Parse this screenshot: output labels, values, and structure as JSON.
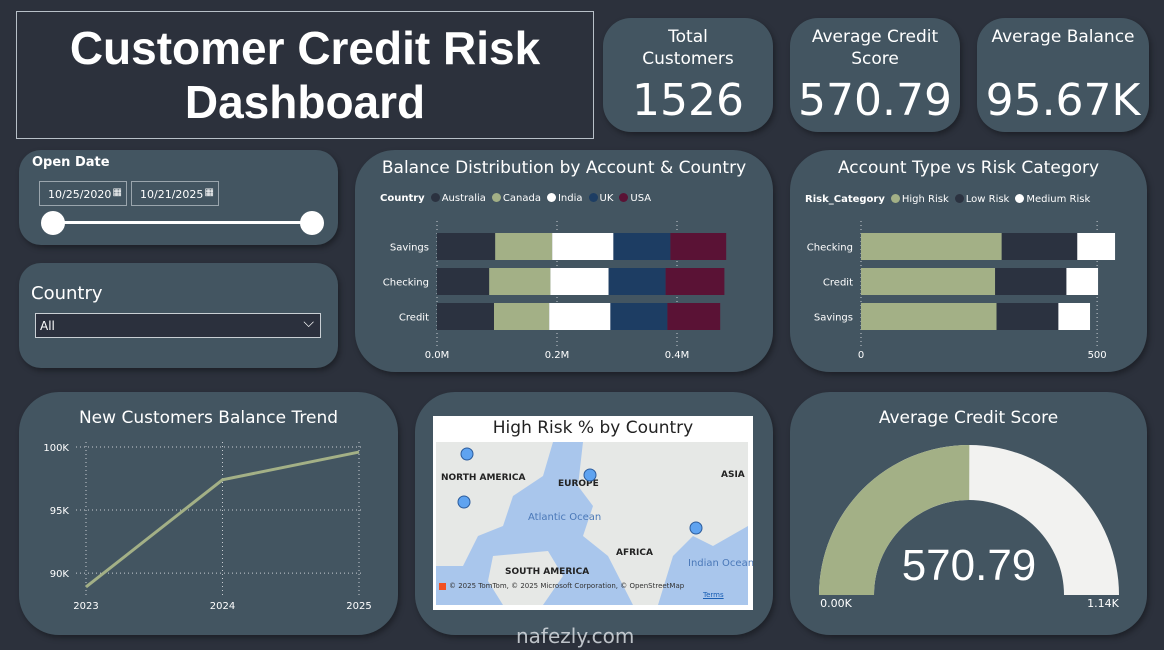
{
  "title": "Customer Credit Risk Dashboard",
  "kpis": [
    {
      "label": "Total Customers",
      "value": "1526"
    },
    {
      "label": "Average Credit Score",
      "value": "570.79"
    },
    {
      "label": "Average Balance",
      "value": "95.67K"
    }
  ],
  "open_date": {
    "label": "Open Date",
    "start": "10/25/2020",
    "end": "10/21/2025",
    "range_fraction": [
      0,
      1
    ]
  },
  "country_filter": {
    "label": "Country",
    "selected": "All"
  },
  "chart_data": [
    {
      "type": "bar",
      "orientation": "horizontal-stacked",
      "title": "Balance Distribution by Account & Country",
      "legend_title": "Country",
      "legend_placement": "top-left",
      "categories": [
        "Savings",
        "Checking",
        "Credit"
      ],
      "series": [
        {
          "name": "Australia",
          "color": "#2b3240",
          "values": [
            0.097,
            0.087,
            0.095
          ]
        },
        {
          "name": "Canada",
          "color": "#a3b086",
          "values": [
            0.095,
            0.102,
            0.092
          ]
        },
        {
          "name": "India",
          "color": "#ffffff",
          "values": [
            0.102,
            0.097,
            0.102
          ]
        },
        {
          "name": "UK",
          "color": "#1d3d63",
          "values": [
            0.095,
            0.095,
            0.095
          ]
        },
        {
          "name": "USA",
          "color": "#5a1235",
          "values": [
            0.093,
            0.098,
            0.088
          ]
        }
      ],
      "xticks": [
        "0.0M",
        "0.2M",
        "0.4M"
      ],
      "xtick_values": [
        0,
        0.2,
        0.4
      ],
      "xlim": [
        0,
        0.5
      ],
      "unit": "M"
    },
    {
      "type": "bar",
      "orientation": "horizontal-stacked",
      "title": "Account Type vs Risk Category",
      "legend_title": "Risk_Category",
      "legend_placement": "top-left",
      "categories": [
        "Checking",
        "Credit",
        "Savings"
      ],
      "series": [
        {
          "name": "High Risk",
          "color": "#a3b086",
          "values": [
            298,
            284,
            287
          ]
        },
        {
          "name": "Low Risk",
          "color": "#2b3240",
          "values": [
            160,
            151,
            131
          ]
        },
        {
          "name": "Medium Risk",
          "color": "#ffffff",
          "values": [
            80,
            67,
            67
          ]
        }
      ],
      "xticks": [
        "0",
        "500"
      ],
      "xtick_values": [
        0,
        500
      ],
      "xlim": [
        0,
        540
      ]
    },
    {
      "type": "line",
      "title": "New Customers Balance Trend",
      "x": [
        "2023",
        "2024",
        "2025"
      ],
      "y": [
        88.9,
        97.4,
        99.6
      ],
      "yticks": [
        "90K",
        "95K",
        "100K"
      ],
      "ytick_values": [
        90,
        95,
        100
      ],
      "ylim": [
        88.5,
        100
      ],
      "color": "#a3b086",
      "grid": true
    },
    {
      "type": "map",
      "title": "High Risk % by Country",
      "labels": [
        "NORTH AMERICA",
        "EUROPE",
        "ASIA",
        "Atlantic Ocean",
        "AFRICA",
        "SOUTH AMERICA",
        "Indian Ocean"
      ],
      "attribution": "© 2025 TomTom, © 2025 Microsoft Corporation, © OpenStreetMap",
      "terms": "Terms"
    },
    {
      "type": "gauge",
      "title": "Average Credit Score",
      "value": 570.79,
      "value_label": "570.79",
      "min_label": "0.00K",
      "max_label": "1.14K",
      "min": 0,
      "max": 1140,
      "fill_color": "#a3b086",
      "track_color": "#f2f2f0"
    }
  ],
  "watermark": "nafezly.com"
}
